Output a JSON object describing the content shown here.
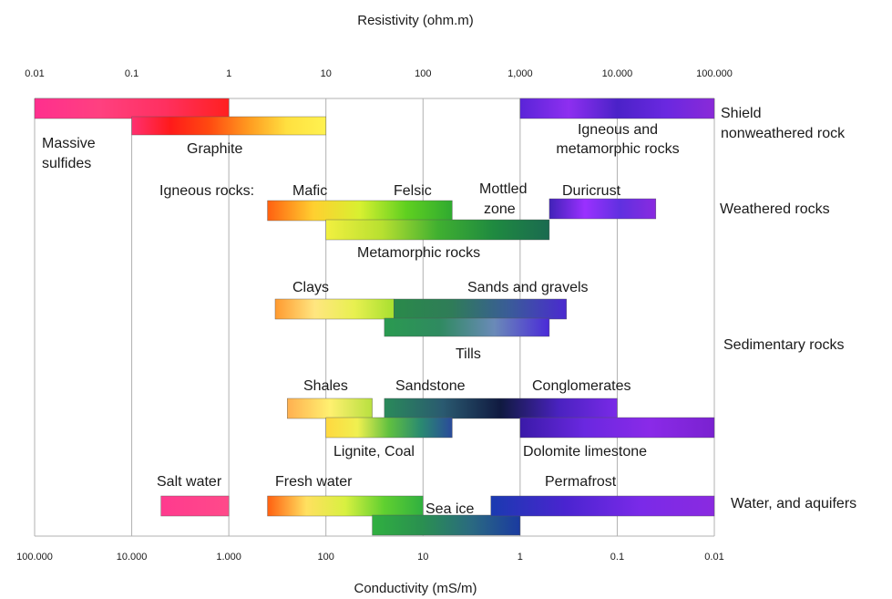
{
  "chart_data": {
    "type": "range-bar",
    "x_top_title": "Resistivity (ohm.m)",
    "x_bottom_title": "Conductivity (mS/m)",
    "scale": "log",
    "xlim": [
      0.01,
      100000
    ],
    "top_ticks": [
      {
        "value": 0.01,
        "label": "0.01"
      },
      {
        "value": 0.1,
        "label": "0.1"
      },
      {
        "value": 1,
        "label": "1"
      },
      {
        "value": 10,
        "label": "10"
      },
      {
        "value": 100,
        "label": "100"
      },
      {
        "value": 1000,
        "label": "1,000"
      },
      {
        "value": 10000,
        "label": "10.000"
      },
      {
        "value": 100000,
        "label": "100.000"
      }
    ],
    "bottom_ticks": [
      {
        "value": 0.01,
        "label": "100.000"
      },
      {
        "value": 0.1,
        "label": "10.000"
      },
      {
        "value": 1,
        "label": "1.000"
      },
      {
        "value": 10,
        "label": "100"
      },
      {
        "value": 100,
        "label": "10"
      },
      {
        "value": 1000,
        "label": "1"
      },
      {
        "value": 10000,
        "label": "0.1"
      },
      {
        "value": 100000,
        "label": "0.01"
      }
    ],
    "categories": [
      {
        "name": "Shield nonweathered rock",
        "lines": [
          "Shield",
          "nonweathered rock"
        ]
      },
      {
        "name": "Weathered rocks",
        "lines": [
          "Weathered rocks"
        ]
      },
      {
        "name": "Sedimentary rocks",
        "lines": [
          "Sedimentary rocks"
        ]
      },
      {
        "name": "Water, and aquifers",
        "lines": [
          "Water, and aquifers"
        ]
      }
    ],
    "ranges": [
      {
        "name": "Massive sulfides",
        "category": "Shield nonweathered rock",
        "min": 0.01,
        "max": 1,
        "gradient": [
          "#ff2f8e",
          "#ff4080",
          "#ff3060",
          "#ff2020"
        ]
      },
      {
        "name": "Graphite",
        "category": "Shield nonweathered rock",
        "min": 0.1,
        "max": 10,
        "gradient": [
          "#ff3070",
          "#ff1a1a",
          "#ff4a10",
          "#ff9a20",
          "#ffe040",
          "#fff250"
        ]
      },
      {
        "name": "Igneous and metamorphic rocks",
        "category": "Shield nonweathered rock",
        "min": 1000,
        "max": 100000,
        "gradient": [
          "#5a24d8",
          "#8e2ff0",
          "#4b22c8",
          "#6a28e0",
          "#8a2ad8"
        ]
      },
      {
        "name": "Igneous rocks: Mafic to Felsic",
        "category": "Weathered rocks",
        "min": 2.5,
        "max": 200,
        "gradient": [
          "#ff6010",
          "#ffd030",
          "#d8f030",
          "#60d020",
          "#2faa30"
        ]
      },
      {
        "name": "Metamorphic rocks",
        "category": "Weathered rocks",
        "min": 10,
        "max": 2000,
        "gradient": [
          "#f2f040",
          "#b8e030",
          "#40b030",
          "#1f8a40",
          "#1a6a50"
        ]
      },
      {
        "name": "Duricrust",
        "category": "Weathered rocks",
        "min": 2000,
        "max": 25000,
        "gradient": [
          "#4022b8",
          "#9a30ff",
          "#6030e0",
          "#8a2ae0"
        ]
      },
      {
        "name": "Clays",
        "category": "Sedimentary rocks",
        "min": 3,
        "max": 50,
        "gradient": [
          "#ff9a30",
          "#ffe680",
          "#e8f050",
          "#a8e030"
        ]
      },
      {
        "name": "Sands and gravels",
        "category": "Sedimentary rocks",
        "min": 50,
        "max": 3000,
        "gradient": [
          "#2a8a4a",
          "#2f7c58",
          "#3a5c98",
          "#4a2ad0"
        ]
      },
      {
        "name": "Tills",
        "category": "Sedimentary rocks",
        "min": 40,
        "max": 2000,
        "gradient": [
          "#2a9a50",
          "#2f8a60",
          "#6a8ab8",
          "#4a2ad8"
        ]
      },
      {
        "name": "Shales",
        "category": "Sedimentary rocks",
        "min": 4,
        "max": 30,
        "gradient": [
          "#ffb050",
          "#fff070",
          "#b8e040"
        ]
      },
      {
        "name": "Sandstone to Conglomerates",
        "category": "Sedimentary rocks",
        "min": 40,
        "max": 10000,
        "gradient": [
          "#2a8a5a",
          "#2a5a70",
          "#101a40",
          "#4a22c0",
          "#7a2ae8"
        ]
      },
      {
        "name": "Lignite, Coal",
        "category": "Sedimentary rocks",
        "min": 10,
        "max": 200,
        "gradient": [
          "#ffd840",
          "#f0f050",
          "#60c040",
          "#2a8a70",
          "#2a4a9a"
        ]
      },
      {
        "name": "Dolomite limestone",
        "category": "Sedimentary rocks",
        "min": 1000,
        "max": 100000,
        "gradient": [
          "#3a1aa8",
          "#6a28e0",
          "#8a2ae8",
          "#7a22d0"
        ]
      },
      {
        "name": "Salt water",
        "category": "Water, and aquifers",
        "min": 0.2,
        "max": 1,
        "gradient": [
          "#ff3a8e",
          "#ff4a8a"
        ]
      },
      {
        "name": "Fresh water",
        "category": "Water, and aquifers",
        "min": 2.5,
        "max": 100,
        "gradient": [
          "#ff6010",
          "#ffe060",
          "#d8f040",
          "#60d030",
          "#30b040"
        ]
      },
      {
        "name": "Sea ice",
        "category": "Water, and aquifers",
        "min": 30,
        "max": 1000,
        "gradient": [
          "#30b040",
          "#2a9050",
          "#2a6a80",
          "#1a3aa0"
        ]
      },
      {
        "name": "Permafrost",
        "category": "Water, and aquifers",
        "min": 500,
        "max": 100000,
        "gradient": [
          "#1a3ab0",
          "#4a24d0",
          "#7a2ae8",
          "#8a2ae0"
        ]
      }
    ],
    "labels": [
      "Massive",
      "sulfides",
      "Graphite",
      "Igneous and",
      "metamorphic rocks",
      "Igneous rocks:",
      "Mafic",
      "Felsic",
      "Mottled",
      "zone",
      "Duricrust",
      "Metamorphic rocks",
      "Clays",
      "Sands and gravels",
      "Tills",
      "Shales",
      "Sandstone",
      "Conglomerates",
      "Lignite, Coal",
      "Dolomite limestone",
      "Salt water",
      "Fresh water",
      "Sea ice",
      "Permafrost"
    ],
    "grid": true,
    "legend": "none"
  }
}
